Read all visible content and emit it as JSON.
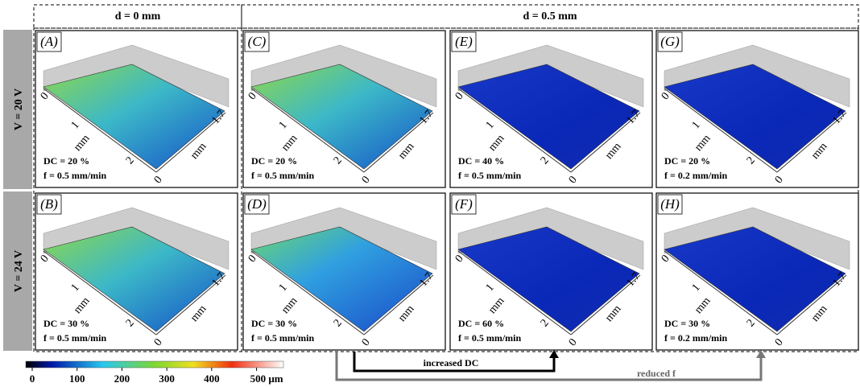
{
  "header": {
    "col1": "d = 0 mm",
    "col2": "d = 0.5 mm"
  },
  "rows": [
    "V = 20 V",
    "V = 24 V"
  ],
  "panel_axis": {
    "x_ticks": [
      "0",
      "1",
      "2"
    ],
    "x_unit": "mm",
    "y_ticks": [
      "0",
      "1.7"
    ],
    "y_unit": "mm"
  },
  "panels": [
    {
      "label": "(A)",
      "dc": "DC = 20 %",
      "f": "f = 0.5 mm/min"
    },
    {
      "label": "(B)",
      "dc": "DC = 30 %",
      "f": "f = 0.5 mm/min"
    },
    {
      "label": "(C)",
      "dc": "DC = 20 %",
      "f": "f = 0.5 mm/min"
    },
    {
      "label": "(D)",
      "dc": "DC = 30 %",
      "f": "f = 0.5 mm/min"
    },
    {
      "label": "(E)",
      "dc": "DC = 40 %",
      "f": "f = 0.5 mm/min"
    },
    {
      "label": "(F)",
      "dc": "DC = 60 %",
      "f": "f = 0.5 mm/min"
    },
    {
      "label": "(G)",
      "dc": "DC = 20 %",
      "f": "f = 0.2 mm/min"
    },
    {
      "label": "(H)",
      "dc": "DC = 30 %",
      "f": "f = 0.2 mm/min"
    }
  ],
  "arrows": {
    "dc": "increased DC",
    "f": "reduced f"
  },
  "colorbar": {
    "lim": [
      0,
      560
    ],
    "ticks": [
      0,
      100,
      200,
      300,
      400,
      {
        "value": 500,
        "label": "500 µm"
      }
    ]
  }
}
